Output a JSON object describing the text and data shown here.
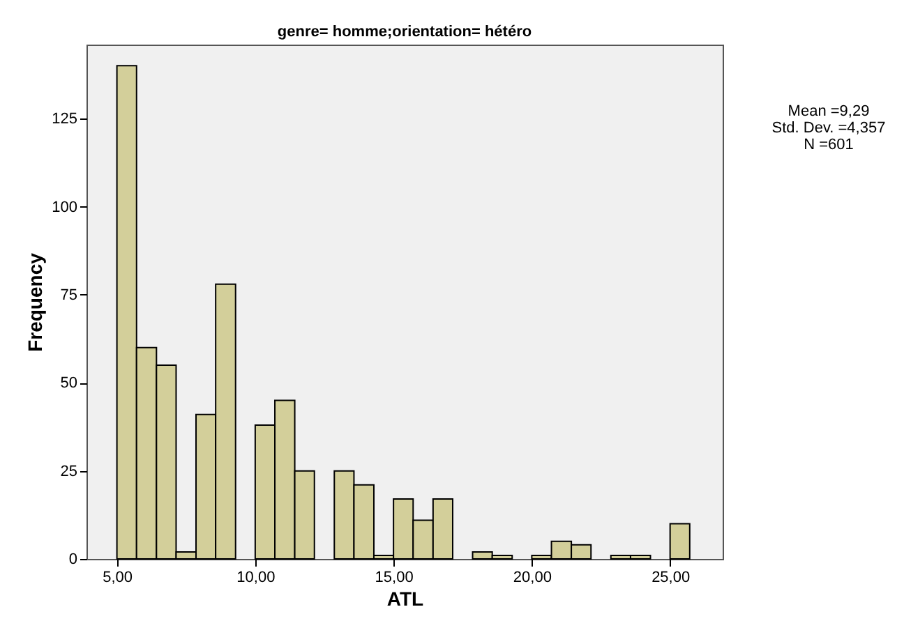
{
  "chart_data": {
    "type": "histogram",
    "title": "genre= homme;orientation= hétéro",
    "xlabel": "ATL",
    "ylabel": "Frequency",
    "bins": [
      5,
      5.71,
      6.43,
      7.14,
      7.86,
      8.57,
      9.29,
      10,
      10.71,
      11.43,
      12.14,
      12.86,
      13.57,
      14.29,
      15,
      15.71,
      16.43,
      17.14,
      17.86,
      18.57,
      19.29,
      20,
      20.71,
      21.43,
      22.14,
      22.86,
      23.57,
      24.29,
      25,
      25.71
    ],
    "values": [
      140,
      60,
      55,
      2,
      41,
      78,
      0,
      38,
      45,
      25,
      0,
      25,
      21,
      1,
      17,
      11,
      17,
      0,
      2,
      1,
      0,
      1,
      5,
      4,
      0,
      1,
      1,
      0,
      10
    ],
    "color": "#d3cf9a",
    "xlim": [
      3.9,
      26.9
    ],
    "ylim": [
      0,
      146
    ],
    "xticks": [
      {
        "value": 5,
        "label": "5,00"
      },
      {
        "value": 10,
        "label": "10,00"
      },
      {
        "value": 15,
        "label": "15,00"
      },
      {
        "value": 20,
        "label": "20,00"
      },
      {
        "value": 25,
        "label": "25,00"
      }
    ],
    "yticks": [
      0,
      25,
      50,
      75,
      100,
      125
    ],
    "annotations": [
      "Mean =9,29",
      "Std. Dev. =4,357",
      "N =601"
    ]
  }
}
